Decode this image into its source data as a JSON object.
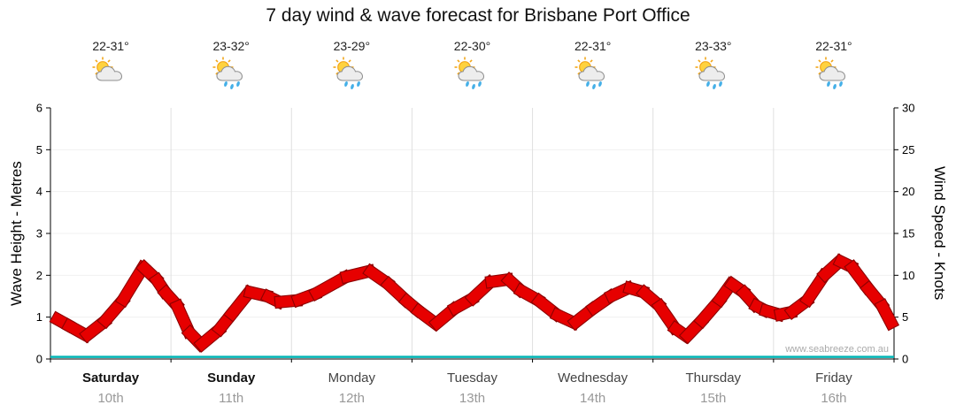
{
  "title": "7 day wind & wave forecast for Brisbane Port Office",
  "watermark": "www.seabreeze.com.au",
  "axes": {
    "left": {
      "label": "Wave Height - Metres",
      "ticks": [
        0,
        1,
        2,
        3,
        4,
        5,
        6
      ],
      "range": [
        0,
        6
      ]
    },
    "right": {
      "label": "Wind Speed - Knots",
      "ticks": [
        0,
        5,
        10,
        15,
        20,
        25,
        30
      ],
      "range": [
        0,
        30
      ]
    }
  },
  "days": [
    {
      "name": "Saturday",
      "date": "10th",
      "temp": "22-31°",
      "icon": "sun-cloud",
      "weekend": true
    },
    {
      "name": "Sunday",
      "date": "11th",
      "temp": "23-32°",
      "icon": "sun-cloud-rain",
      "weekend": true
    },
    {
      "name": "Monday",
      "date": "12th",
      "temp": "23-29°",
      "icon": "sun-cloud-rain",
      "weekend": false
    },
    {
      "name": "Tuesday",
      "date": "13th",
      "temp": "22-30°",
      "icon": "sun-cloud-rain",
      "weekend": false
    },
    {
      "name": "Wednesday",
      "date": "14th",
      "temp": "22-31°",
      "icon": "sun-cloud-rain",
      "weekend": false
    },
    {
      "name": "Thursday",
      "date": "15th",
      "temp": "23-33°",
      "icon": "sun-cloud-rain",
      "weekend": false
    },
    {
      "name": "Friday",
      "date": "16th",
      "temp": "22-31°",
      "icon": "sun-cloud-rain",
      "weekend": false
    }
  ],
  "colors": {
    "wind_fill": "#e60000",
    "wind_edge": "#8e0000",
    "wave_line": "#00b4b4",
    "grid_vertical": "#e0e0e0",
    "grid_horizontal": "#f0f0f0",
    "axis": "#000000"
  },
  "chart_data": {
    "type": "line",
    "title": "7 day wind & wave forecast for Brisbane Port Office",
    "x_unit": "days (0 = start of Saturday 10th, 7 = end of Friday 16th)",
    "x_range": [
      0,
      7
    ],
    "left_ylim": [
      0,
      6
    ],
    "right_ylim": [
      0,
      30
    ],
    "grid": true,
    "series": [
      {
        "name": "Wind Speed",
        "unit": "knots",
        "axis": "right",
        "color": "#e60000",
        "x": [
          0.05,
          0.15,
          0.3,
          0.45,
          0.6,
          0.77,
          0.88,
          0.95,
          1.05,
          1.15,
          1.25,
          1.4,
          1.5,
          1.65,
          1.8,
          1.9,
          2.05,
          2.2,
          2.45,
          2.65,
          2.8,
          2.95,
          3.05,
          3.2,
          3.35,
          3.5,
          3.65,
          3.8,
          3.9,
          4.05,
          4.2,
          4.35,
          4.5,
          4.65,
          4.8,
          4.92,
          5.05,
          5.18,
          5.28,
          5.4,
          5.55,
          5.65,
          5.75,
          5.85,
          5.93,
          6.05,
          6.15,
          6.28,
          6.42,
          6.55,
          6.65,
          6.78,
          6.9,
          6.98
        ],
        "values": [
          4.8,
          4.0,
          2.8,
          4.5,
          7.0,
          11.0,
          9.5,
          8.0,
          6.4,
          3.2,
          1.7,
          3.5,
          5.3,
          8.0,
          7.5,
          6.8,
          7.0,
          7.8,
          9.8,
          10.5,
          9.0,
          7.0,
          5.8,
          4.2,
          6.0,
          7.2,
          9.2,
          9.5,
          8.2,
          7.0,
          5.3,
          4.3,
          6.0,
          7.5,
          8.5,
          8.0,
          6.4,
          3.7,
          2.7,
          4.5,
          7.0,
          9.0,
          8.0,
          6.4,
          5.8,
          5.3,
          5.6,
          7.0,
          10.0,
          11.7,
          11.0,
          8.5,
          6.4,
          4.2
        ]
      },
      {
        "name": "Wave Height",
        "unit": "metres",
        "axis": "left",
        "color": "#00b4b4",
        "x": [
          0,
          7
        ],
        "values": [
          0.05,
          0.05
        ]
      }
    ]
  }
}
